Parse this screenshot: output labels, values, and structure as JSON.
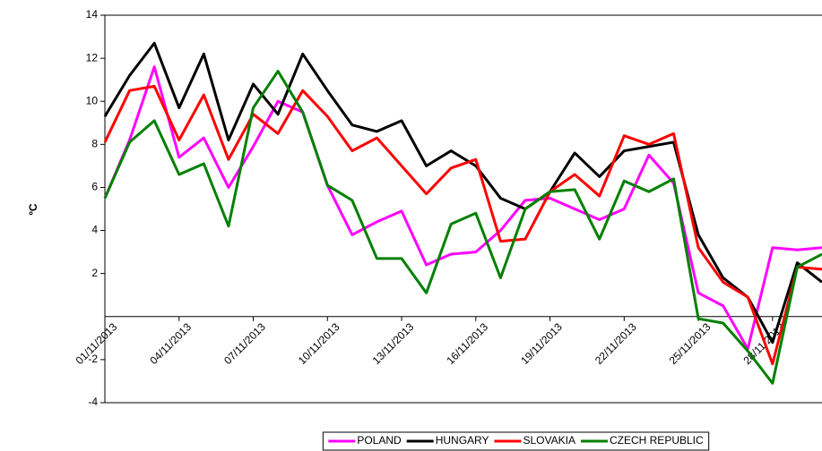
{
  "chart_data": {
    "type": "line",
    "ylabel": "ºC",
    "categories": [
      "01/11/2013",
      null,
      null,
      "04/11/2013",
      null,
      null,
      "07/11/2013",
      null,
      null,
      "10/11/2013",
      null,
      null,
      "13/11/2013",
      null,
      null,
      "16/11/2013",
      null,
      null,
      "19/11/2013",
      null,
      null,
      "22/11/2013",
      null,
      null,
      "25/11/2013",
      null,
      null,
      "28/11/2013",
      null,
      null
    ],
    "series": [
      {
        "name": "POLAND",
        "color": "#ff00ff",
        "values": [
          5.5,
          8.2,
          11.6,
          7.4,
          8.3,
          6.0,
          7.9,
          10.0,
          9.5,
          6.1,
          3.8,
          4.4,
          4.9,
          2.4,
          2.9,
          3.0,
          4.0,
          5.4,
          5.5,
          5.0,
          4.5,
          5.0,
          7.5,
          6.2,
          1.1,
          0.5,
          -1.5,
          3.2,
          3.1,
          3.2
        ]
      },
      {
        "name": "HUNGARY",
        "color": "#000000",
        "values": [
          9.3,
          11.2,
          12.7,
          9.7,
          12.2,
          8.2,
          10.8,
          9.4,
          12.2,
          10.5,
          8.9,
          8.6,
          9.1,
          7.0,
          7.7,
          7.0,
          5.5,
          5.0,
          5.8,
          7.6,
          6.5,
          7.7,
          7.9,
          8.1,
          3.8,
          1.8,
          0.9,
          -1.2,
          2.5,
          1.6
        ]
      },
      {
        "name": "SLOVAKIA",
        "color": "#ff0000",
        "values": [
          8.1,
          10.5,
          10.7,
          8.2,
          10.3,
          7.3,
          9.4,
          8.5,
          10.5,
          9.3,
          7.7,
          8.3,
          7.0,
          5.7,
          6.9,
          7.3,
          3.5,
          3.6,
          5.8,
          6.6,
          5.6,
          8.4,
          8.0,
          8.5,
          3.2,
          1.6,
          0.9,
          -2.2,
          2.3,
          2.2
        ]
      },
      {
        "name": "CZECH REPUBLIC",
        "color": "#008000",
        "values": [
          5.5,
          8.1,
          9.1,
          6.6,
          7.1,
          4.2,
          9.7,
          11.4,
          9.5,
          6.1,
          5.4,
          2.7,
          2.7,
          1.1,
          4.3,
          4.8,
          1.8,
          5.0,
          5.8,
          5.9,
          3.6,
          6.3,
          5.8,
          6.4,
          -0.1,
          -0.3,
          -1.6,
          -3.1,
          2.3,
          2.9
        ]
      }
    ],
    "ylim": [
      -4,
      14
    ],
    "yticks": [
      -4,
      -2,
      2,
      4,
      6,
      8,
      10,
      12,
      14
    ],
    "grid": false,
    "legend": "bottom"
  }
}
